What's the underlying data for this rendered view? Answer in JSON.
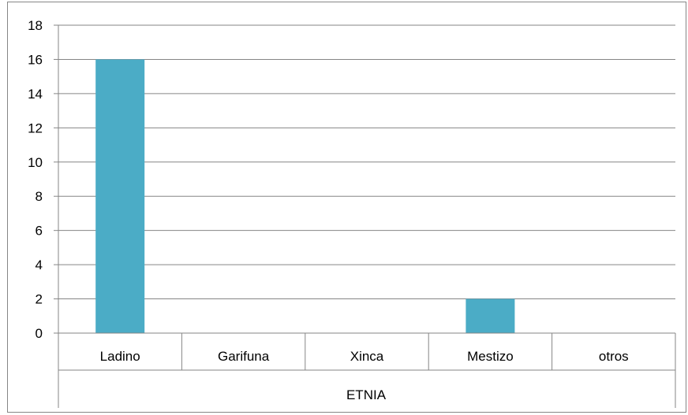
{
  "chart_data": {
    "type": "bar",
    "categories": [
      "Ladino",
      "Garifuna",
      "Xinca",
      "Mestizo",
      "otros"
    ],
    "group_label": "ETNIA",
    "values": [
      16,
      0,
      0,
      2,
      0
    ],
    "ylim": [
      0,
      18
    ],
    "yticks": [
      0,
      2,
      4,
      6,
      8,
      10,
      12,
      14,
      16,
      18
    ],
    "grid": true,
    "legend": "none",
    "colors": {
      "bar": "#4bacc6",
      "grid": "#868686",
      "axis": "#868686"
    }
  }
}
